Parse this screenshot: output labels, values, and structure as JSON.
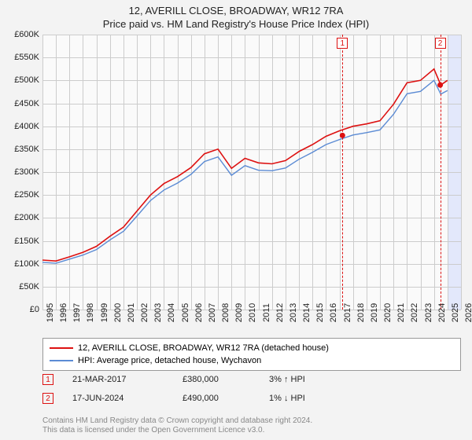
{
  "title_main": "12, AVERILL CLOSE, BROADWAY, WR12 7RA",
  "title_sub": "Price paid vs. HM Land Registry's House Price Index (HPI)",
  "chart": {
    "type": "line",
    "background_color": "#fafafa",
    "grid_color": "#ccc",
    "y": {
      "min": 0,
      "max": 600000,
      "step": 50000,
      "prefix": "£",
      "suffix_k": "K"
    },
    "x": {
      "min": 1995,
      "max": 2026,
      "step": 1
    },
    "highlight_band": {
      "from": 2025,
      "to": 2026,
      "color": "rgba(120,150,255,0.18)"
    },
    "series": [
      {
        "name": "12, AVERILL CLOSE, BROADWAY, WR12 7RA (detached house)",
        "color": "#d11",
        "width": 1.6,
        "points": [
          [
            1995,
            108000
          ],
          [
            1996,
            106000
          ],
          [
            1997,
            115000
          ],
          [
            1998,
            125000
          ],
          [
            1999,
            138000
          ],
          [
            2000,
            160000
          ],
          [
            2001,
            180000
          ],
          [
            2002,
            215000
          ],
          [
            2003,
            250000
          ],
          [
            2004,
            275000
          ],
          [
            2005,
            290000
          ],
          [
            2006,
            310000
          ],
          [
            2007,
            340000
          ],
          [
            2008,
            350000
          ],
          [
            2009,
            308000
          ],
          [
            2010,
            330000
          ],
          [
            2011,
            320000
          ],
          [
            2012,
            318000
          ],
          [
            2013,
            325000
          ],
          [
            2014,
            345000
          ],
          [
            2015,
            360000
          ],
          [
            2016,
            378000
          ],
          [
            2017,
            390000
          ],
          [
            2018,
            400000
          ],
          [
            2019,
            405000
          ],
          [
            2020,
            412000
          ],
          [
            2021,
            448000
          ],
          [
            2022,
            495000
          ],
          [
            2023,
            500000
          ],
          [
            2024,
            525000
          ],
          [
            2024.5,
            490000
          ],
          [
            2025,
            500000
          ]
        ]
      },
      {
        "name": "HPI: Average price, detached house, Wychavon",
        "color": "#5b8bd4",
        "width": 1.4,
        "points": [
          [
            1995,
            103000
          ],
          [
            1996,
            101000
          ],
          [
            1997,
            110000
          ],
          [
            1998,
            119000
          ],
          [
            1999,
            131000
          ],
          [
            2000,
            152000
          ],
          [
            2001,
            171000
          ],
          [
            2002,
            204000
          ],
          [
            2003,
            238000
          ],
          [
            2004,
            261000
          ],
          [
            2005,
            276000
          ],
          [
            2006,
            295000
          ],
          [
            2007,
            323000
          ],
          [
            2008,
            333000
          ],
          [
            2009,
            293000
          ],
          [
            2010,
            314000
          ],
          [
            2011,
            304000
          ],
          [
            2012,
            303000
          ],
          [
            2013,
            309000
          ],
          [
            2014,
            328000
          ],
          [
            2015,
            343000
          ],
          [
            2016,
            360000
          ],
          [
            2017,
            371000
          ],
          [
            2018,
            381000
          ],
          [
            2019,
            386000
          ],
          [
            2020,
            392000
          ],
          [
            2021,
            426000
          ],
          [
            2022,
            471000
          ],
          [
            2023,
            476000
          ],
          [
            2024,
            500000
          ],
          [
            2024.5,
            470000
          ],
          [
            2025,
            478000
          ]
        ]
      }
    ],
    "sale_markers": [
      {
        "n": "1",
        "x": 2017.22,
        "y": 380000
      },
      {
        "n": "2",
        "x": 2024.46,
        "y": 490000
      }
    ],
    "marker_point_color": "#d11"
  },
  "legend": {
    "items": [
      {
        "color": "#d11",
        "label": "12, AVERILL CLOSE, BROADWAY, WR12 7RA (detached house)"
      },
      {
        "color": "#5b8bd4",
        "label": "HPI: Average price, detached house, Wychavon"
      }
    ]
  },
  "sales": [
    {
      "n": "1",
      "date": "21-MAR-2017",
      "price": "£380,000",
      "delta": "3% ↑ HPI"
    },
    {
      "n": "2",
      "date": "17-JUN-2024",
      "price": "£490,000",
      "delta": "1% ↓ HPI"
    }
  ],
  "footnote_1": "Contains HM Land Registry data © Crown copyright and database right 2024.",
  "footnote_2": "This data is licensed under the Open Government Licence v3.0."
}
